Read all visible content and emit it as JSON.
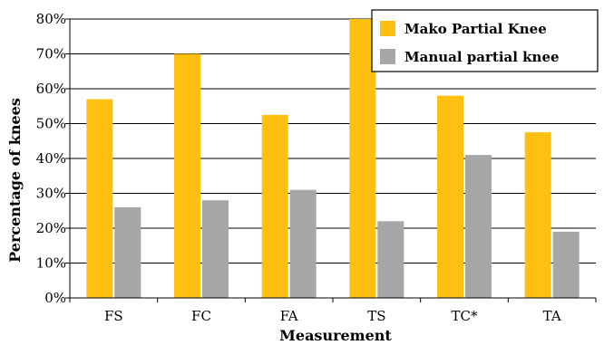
{
  "chart_data": {
    "type": "bar",
    "title": "",
    "xlabel": "Measurement",
    "ylabel": "Percentage of knees",
    "categories": [
      "FS",
      "FC",
      "FA",
      "TS",
      "TC*",
      "TA"
    ],
    "series": [
      {
        "name": "Mako Partial Knee",
        "color": "#FFC012",
        "values": [
          57,
          70,
          52.5,
          80,
          58,
          47.5
        ]
      },
      {
        "name": "Manual partial knee",
        "color": "#A6A6A6",
        "values": [
          26,
          28,
          31,
          22,
          41,
          19
        ]
      }
    ],
    "ylim": [
      0,
      80
    ],
    "yticks": [
      "0%",
      "10%",
      "20%",
      "30%",
      "40%",
      "50%",
      "60%",
      "70%",
      "80%"
    ],
    "grid": true,
    "legend_position": "top-right"
  }
}
